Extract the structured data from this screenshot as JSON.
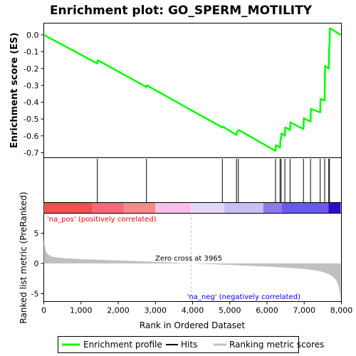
{
  "title": "Enrichment plot: GO_SPERM_MOTILITY",
  "colors": {
    "es_line": "#00ff00",
    "hits": "#000000",
    "metric_fill": "#c0c0c0",
    "zero_line": "#c0c0c0",
    "pos_label": "#ff0000",
    "neg_label": "#0000ff",
    "heat_pos": "#ff0000",
    "heat_neg": "#0000c0"
  },
  "chart_data": [
    {
      "type": "line",
      "panel": "enrichment",
      "ylabel": "Enrichment score (ES)",
      "ylim": [
        -0.73,
        0.07
      ],
      "yticks": [
        "0.0",
        "-0.1",
        "-0.2",
        "-0.3",
        "-0.4",
        "-0.5",
        "-0.6",
        "-0.7"
      ],
      "ytick_values": [
        0.0,
        -0.1,
        -0.2,
        -0.3,
        -0.4,
        -0.5,
        -0.6,
        -0.7
      ],
      "xlim": [
        0,
        8000
      ],
      "series": [
        {
          "name": "Enrichment profile",
          "x": [
            0,
            1440,
            1450,
            2760,
            2770,
            4800,
            4810,
            5180,
            5190,
            5230,
            5240,
            6230,
            6240,
            6350,
            6360,
            6380,
            6390,
            6480,
            6490,
            6620,
            6630,
            6980,
            6990,
            7170,
            7180,
            7430,
            7440,
            7550,
            7560,
            7660,
            7670,
            7680,
            7690,
            7980
          ],
          "y": [
            0.0,
            -0.17,
            -0.15,
            -0.31,
            -0.3,
            -0.55,
            -0.545,
            -0.595,
            -0.575,
            -0.572,
            -0.565,
            -0.69,
            -0.655,
            -0.67,
            -0.63,
            -0.61,
            -0.585,
            -0.6,
            -0.55,
            -0.565,
            -0.52,
            -0.56,
            -0.495,
            -0.515,
            -0.44,
            -0.46,
            -0.38,
            -0.39,
            -0.185,
            -0.2,
            -0.08,
            -0.06,
            0.04,
            0.0
          ]
        }
      ]
    },
    {
      "type": "scatter",
      "panel": "hits",
      "name": "Hits",
      "x": [
        1440,
        2760,
        4800,
        5180,
        5230,
        6230,
        6350,
        6380,
        6480,
        6620,
        6980,
        7170,
        7430,
        7550,
        7660,
        7680
      ]
    },
    {
      "type": "heatmap",
      "panel": "ranking_colorbar",
      "segments": [
        {
          "start": 0,
          "end": 1300,
          "color": "#f05050"
        },
        {
          "start": 1300,
          "end": 2150,
          "color": "#f56a7a"
        },
        {
          "start": 2150,
          "end": 3000,
          "color": "#f58a8a"
        },
        {
          "start": 3000,
          "end": 3960,
          "color": "#fbc0e6"
        },
        {
          "start": 3960,
          "end": 4850,
          "color": "#e4d8fa"
        },
        {
          "start": 4850,
          "end": 5900,
          "color": "#c7c0f4"
        },
        {
          "start": 5900,
          "end": 6400,
          "color": "#8a7aee"
        },
        {
          "start": 6400,
          "end": 7650,
          "color": "#6a5ae8"
        },
        {
          "start": 7650,
          "end": 7980,
          "color": "#2a0fc8"
        }
      ]
    },
    {
      "type": "area",
      "panel": "ranked_list",
      "ylabel": "Ranked list metric (PreRanked)",
      "xlabel": "Rank in Ordered Dataset",
      "ylim": [
        -6.3,
        8.3
      ],
      "yticks": [
        "5",
        "0",
        "-5"
      ],
      "ytick_values": [
        5,
        0,
        -5
      ],
      "xlim": [
        0,
        8000
      ],
      "xticks": [
        "0",
        "1,000",
        "2,000",
        "3,000",
        "4,000",
        "5,000",
        "6,000",
        "7,000",
        "8,000"
      ],
      "xtick_values": [
        0,
        1000,
        2000,
        3000,
        4000,
        5000,
        6000,
        7000,
        8000
      ],
      "x": [
        0,
        10,
        30,
        60,
        100,
        150,
        250,
        400,
        600,
        1000,
        1500,
        2000,
        2500,
        3000,
        3500,
        3965,
        4500,
        5000,
        5500,
        6000,
        6500,
        7000,
        7300,
        7500,
        7650,
        7750,
        7850,
        7900,
        7950,
        7980
      ],
      "y": [
        5.0,
        3.3,
        2.6,
        2.0,
        1.6,
        1.35,
        1.1,
        0.95,
        0.85,
        0.72,
        0.6,
        0.5,
        0.38,
        0.26,
        0.13,
        0.0,
        -0.12,
        -0.25,
        -0.38,
        -0.52,
        -0.7,
        -0.92,
        -1.15,
        -1.4,
        -1.75,
        -2.1,
        -2.7,
        -3.3,
        -4.5,
        -6.0
      ],
      "zero_cross_label": "Zero cross at 3965",
      "zero_cross_x": 3965,
      "pos_label": "'na_pos' (positively correlated)",
      "neg_label": "'na_neg' (negatively correlated)"
    }
  ],
  "legend": {
    "items": [
      "Enrichment profile",
      "Hits",
      "Ranking metric scores"
    ]
  }
}
